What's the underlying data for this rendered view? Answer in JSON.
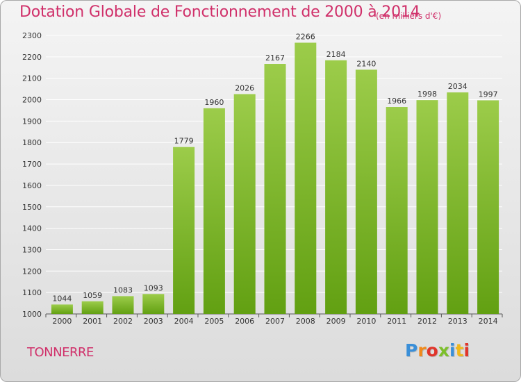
{
  "title": "Dotation Globale de Fonctionnement de 2000 à 2014",
  "subtitle": "(en milliers d'€)",
  "city": "TONNERRE",
  "brand": "Proxiti",
  "colors": {
    "title": "#d0306a",
    "bar_top": "#9ccc4a",
    "bar_bottom": "#62a012",
    "grid": "#ffffff"
  },
  "chart_data": {
    "type": "bar",
    "categories": [
      "2000",
      "2001",
      "2002",
      "2003",
      "2004",
      "2005",
      "2006",
      "2007",
      "2008",
      "2009",
      "2010",
      "2011",
      "2012",
      "2013",
      "2014"
    ],
    "values": [
      1044,
      1059,
      1083,
      1093,
      1779,
      1960,
      2026,
      2167,
      2266,
      2184,
      2140,
      1966,
      1998,
      2034,
      1997
    ],
    "yticks": [
      1000,
      1100,
      1200,
      1300,
      1400,
      1500,
      1600,
      1700,
      1800,
      1900,
      2000,
      2100,
      2200,
      2300
    ],
    "ylim": [
      1000,
      2300
    ],
    "grid": true
  }
}
